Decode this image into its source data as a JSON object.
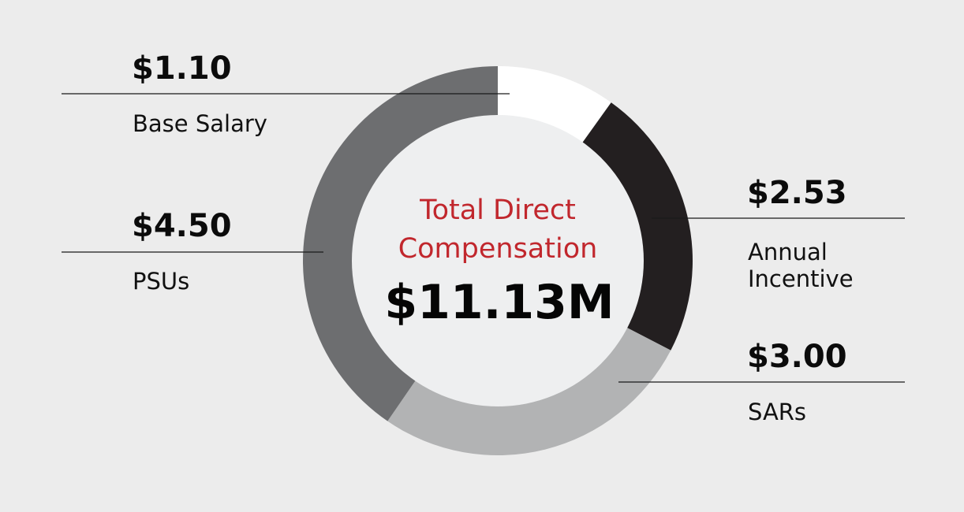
{
  "chart_data": {
    "type": "pie",
    "variant": "donut",
    "title": "Total Direct Compensation",
    "total_label": "$11.13M",
    "total": 11.13,
    "units": "$M",
    "slices": [
      {
        "label": "Base Salary",
        "value": 1.1,
        "value_label": "$1.10",
        "color": "#ffffff",
        "label_side": "left"
      },
      {
        "label_lines": [
          "Annual",
          "Incentive"
        ],
        "label": "Annual Incentive",
        "value": 2.53,
        "value_label": "$2.53",
        "color": "#231f20",
        "label_side": "right"
      },
      {
        "label": "SARs",
        "value": 3.0,
        "value_label": "$3.00",
        "color": "#b2b3b4",
        "label_side": "right"
      },
      {
        "label": "PSUs",
        "value": 4.5,
        "value_label": "$4.50",
        "color": "#6d6e70",
        "label_side": "left"
      }
    ],
    "start": "top",
    "direction": "clockwise"
  },
  "colors": {
    "background": "#ececec",
    "center": "#eeeff0",
    "title": "#c1272d"
  }
}
